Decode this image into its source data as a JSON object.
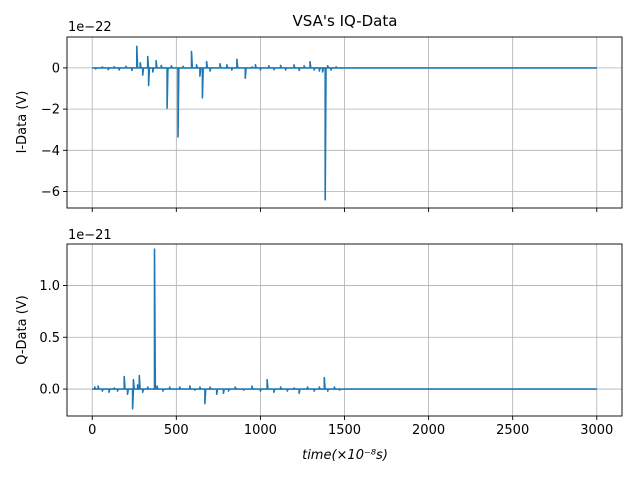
{
  "chart_data": [
    {
      "type": "line",
      "title": "VSA's IQ-Data",
      "ylabel": "I-Data (V)",
      "xlabel": "",
      "exponent_label": "1e−22",
      "xlim": [
        -150,
        3150
      ],
      "ylim": [
        -6.8,
        1.5
      ],
      "xticks": [
        0,
        500,
        1000,
        1500,
        2000,
        2500,
        3000
      ],
      "xtick_labels_visible": false,
      "yticks": [
        0,
        -2,
        -4,
        -6
      ],
      "ytick_labels": [
        "0",
        "−2",
        "−4",
        "−6"
      ],
      "grid": true,
      "color": "#1f77b4",
      "series": [
        {
          "baseline": 0,
          "spikes": [
            [
              20,
              -0.05
            ],
            [
              60,
              0.05
            ],
            [
              95,
              -0.08
            ],
            [
              130,
              0.06
            ],
            [
              160,
              -0.1
            ],
            [
              200,
              0.08
            ],
            [
              235,
              -0.12
            ],
            [
              265,
              1.05
            ],
            [
              285,
              0.25
            ],
            [
              300,
              -0.35
            ],
            [
              330,
              0.55
            ],
            [
              335,
              -0.85
            ],
            [
              360,
              -0.2
            ],
            [
              380,
              0.35
            ],
            [
              410,
              0.12
            ],
            [
              445,
              -1.95
            ],
            [
              470,
              0.1
            ],
            [
              510,
              -3.35
            ],
            [
              540,
              0.08
            ],
            [
              590,
              0.8
            ],
            [
              620,
              0.15
            ],
            [
              640,
              -0.4
            ],
            [
              655,
              -1.45
            ],
            [
              680,
              0.3
            ],
            [
              700,
              -0.15
            ],
            [
              760,
              0.2
            ],
            [
              800,
              0.15
            ],
            [
              830,
              -0.1
            ],
            [
              860,
              0.42
            ],
            [
              910,
              -0.5
            ],
            [
              950,
              0.05
            ],
            [
              970,
              0.15
            ],
            [
              1000,
              -0.1
            ],
            [
              1050,
              0.1
            ],
            [
              1080,
              -0.08
            ],
            [
              1120,
              0.12
            ],
            [
              1150,
              -0.1
            ],
            [
              1200,
              0.15
            ],
            [
              1230,
              -0.12
            ],
            [
              1260,
              0.1
            ],
            [
              1295,
              0.3
            ],
            [
              1320,
              -0.1
            ],
            [
              1350,
              -0.15
            ],
            [
              1370,
              -0.2
            ],
            [
              1385,
              -6.4
            ],
            [
              1400,
              0.1
            ],
            [
              1420,
              -0.1
            ],
            [
              1450,
              0.05
            ]
          ],
          "x_end": 3000
        }
      ]
    },
    {
      "type": "line",
      "title": "",
      "ylabel": "Q-Data (V)",
      "xlabel": "time(×10⁻⁸s)",
      "exponent_label": "1e−21",
      "xlim": [
        -150,
        3150
      ],
      "ylim": [
        -0.26,
        1.4
      ],
      "xticks": [
        0,
        500,
        1000,
        1500,
        2000,
        2500,
        3000
      ],
      "xtick_labels": [
        "0",
        "500",
        "1000",
        "1500",
        "2000",
        "2500",
        "3000"
      ],
      "yticks": [
        0.0,
        0.5,
        1.0
      ],
      "ytick_labels": [
        "0.0",
        "0.5",
        "1.0"
      ],
      "grid": true,
      "color": "#1f77b4",
      "series": [
        {
          "baseline": 0,
          "spikes": [
            [
              15,
              0.02
            ],
            [
              35,
              0.03
            ],
            [
              60,
              -0.02
            ],
            [
              100,
              -0.03
            ],
            [
              130,
              0.01
            ],
            [
              150,
              -0.02
            ],
            [
              190,
              0.12
            ],
            [
              210,
              -0.05
            ],
            [
              240,
              -0.19
            ],
            [
              245,
              0.09
            ],
            [
              270,
              0.04
            ],
            [
              280,
              0.13
            ],
            [
              300,
              -0.03
            ],
            [
              330,
              0.02
            ],
            [
              370,
              1.35
            ],
            [
              385,
              0.03
            ],
            [
              420,
              -0.02
            ],
            [
              460,
              0.02
            ],
            [
              520,
              0.02
            ],
            [
              580,
              0.03
            ],
            [
              610,
              -0.01
            ],
            [
              640,
              0.02
            ],
            [
              670,
              -0.14
            ],
            [
              700,
              0.02
            ],
            [
              740,
              -0.05
            ],
            [
              780,
              -0.04
            ],
            [
              810,
              -0.02
            ],
            [
              850,
              0.02
            ],
            [
              900,
              -0.01
            ],
            [
              950,
              0.03
            ],
            [
              1000,
              -0.02
            ],
            [
              1040,
              0.09
            ],
            [
              1080,
              -0.03
            ],
            [
              1120,
              0.02
            ],
            [
              1160,
              -0.02
            ],
            [
              1200,
              0.01
            ],
            [
              1230,
              -0.04
            ],
            [
              1280,
              0.02
            ],
            [
              1320,
              -0.02
            ],
            [
              1350,
              0.02
            ],
            [
              1380,
              0.11
            ],
            [
              1400,
              -0.02
            ],
            [
              1440,
              0.02
            ],
            [
              1470,
              -0.01
            ]
          ],
          "x_end": 3000
        }
      ]
    }
  ]
}
